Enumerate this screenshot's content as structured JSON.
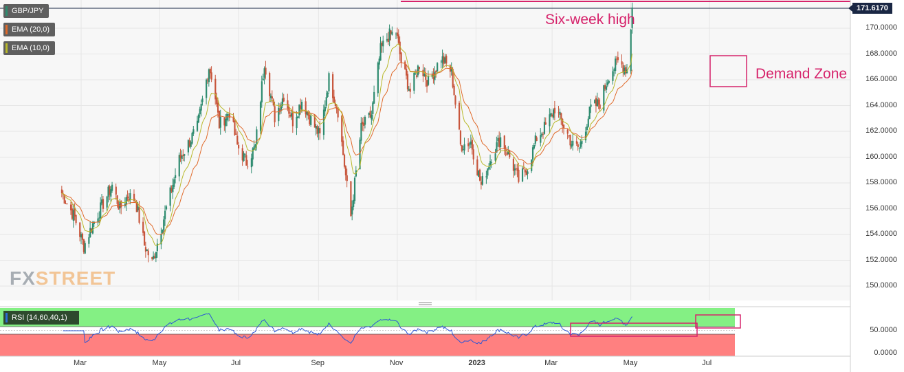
{
  "symbol_label": "GBP/JPY",
  "indicators": [
    {
      "label": "EMA (20,0)",
      "color": "#e06a2a"
    },
    {
      "label": "EMA (10,0)",
      "color": "#b8b82a"
    }
  ],
  "last_price": "171.6170",
  "annotations": {
    "six_week_high": "Six-week high",
    "demand_zone": "Demand Zone"
  },
  "logo": {
    "fx": "FX",
    "street": "STREET"
  },
  "rsi_label": "RSI (14,60,40,1)",
  "colors": {
    "up": "#2e8b6f",
    "down": "#c8563c",
    "annotation": "#d6236b",
    "rsi_line": "#2b55d6"
  },
  "chart_data": {
    "type": "candlestick",
    "title": "",
    "y_ticks": [
      "170.0000",
      "168.0000",
      "166.0000",
      "164.0000",
      "162.0000",
      "160.0000",
      "158.0000",
      "156.0000",
      "154.0000",
      "152.0000",
      "150.0000"
    ],
    "x_ticks": [
      "Mar",
      "May",
      "Jul",
      "Sep",
      "Nov",
      "2023",
      "Mar",
      "May",
      "Jul"
    ],
    "ylim": [
      148.6,
      172.2
    ],
    "grid": true,
    "anchors": [
      [
        "2022-02-14",
        157.2
      ],
      [
        "2022-02-24",
        155.3
      ],
      [
        "2022-03-03",
        153.1
      ],
      [
        "2022-03-10",
        154.8
      ],
      [
        "2022-03-25",
        157.8
      ],
      [
        "2022-03-31",
        156.0
      ],
      [
        "2022-04-06",
        157.0
      ],
      [
        "2022-04-12",
        156.7
      ],
      [
        "2022-04-19",
        153.2
      ],
      [
        "2022-04-25",
        151.8
      ],
      [
        "2022-05-02",
        154.5
      ],
      [
        "2022-05-16",
        159.8
      ],
      [
        "2022-05-30",
        162.3
      ],
      [
        "2022-06-08",
        167.0
      ],
      [
        "2022-06-11",
        166.0
      ],
      [
        "2022-06-16",
        162.5
      ],
      [
        "2022-06-24",
        163.5
      ],
      [
        "2022-06-30",
        160.9
      ],
      [
        "2022-07-07",
        159.6
      ],
      [
        "2022-07-14",
        160.8
      ],
      [
        "2022-07-21",
        167.4
      ],
      [
        "2022-07-29",
        163.1
      ],
      [
        "2022-08-05",
        164.8
      ],
      [
        "2022-08-12",
        162.8
      ],
      [
        "2022-08-19",
        164.4
      ],
      [
        "2022-08-25",
        163.1
      ],
      [
        "2022-09-02",
        161.6
      ],
      [
        "2022-09-09",
        166.1
      ],
      [
        "2022-09-16",
        163.6
      ],
      [
        "2022-09-23",
        157.7
      ],
      [
        "2022-09-26",
        155.4
      ],
      [
        "2022-10-04",
        162.2
      ],
      [
        "2022-10-12",
        163.3
      ],
      [
        "2022-10-19",
        168.3
      ],
      [
        "2022-10-25",
        169.4
      ],
      [
        "2022-10-31",
        169.7
      ],
      [
        "2022-11-04",
        167.4
      ],
      [
        "2022-11-11",
        165.1
      ],
      [
        "2022-11-18",
        167.2
      ],
      [
        "2022-11-25",
        165.8
      ],
      [
        "2022-12-05",
        167.7
      ],
      [
        "2022-12-13",
        166.6
      ],
      [
        "2022-12-20",
        160.9
      ],
      [
        "2022-12-28",
        161.2
      ],
      [
        "2023-01-05",
        157.8
      ],
      [
        "2023-01-13",
        160.1
      ],
      [
        "2023-01-20",
        161.5
      ],
      [
        "2023-01-27",
        160.0
      ],
      [
        "2023-02-03",
        158.2
      ],
      [
        "2023-02-10",
        159.2
      ],
      [
        "2023-02-17",
        161.5
      ],
      [
        "2023-02-24",
        162.4
      ],
      [
        "2023-03-03",
        163.8
      ],
      [
        "2023-03-10",
        162.4
      ],
      [
        "2023-03-17",
        160.9
      ],
      [
        "2023-03-22",
        160.7
      ],
      [
        "2023-03-31",
        163.8
      ],
      [
        "2023-04-07",
        164.2
      ],
      [
        "2023-04-14",
        166.4
      ],
      [
        "2023-04-21",
        167.4
      ],
      [
        "2023-04-28",
        166.8
      ],
      [
        "2023-05-01",
        170.1
      ],
      [
        "2023-05-02",
        171.6
      ]
    ],
    "series": [
      {
        "name": "GBP/JPY",
        "kind": "candles"
      },
      {
        "name": "EMA (20,0)",
        "kind": "line",
        "color": "#e06a2a"
      },
      {
        "name": "EMA (10,0)",
        "kind": "line",
        "color": "#b8b82a"
      }
    ],
    "rsi": {
      "name": "RSI (14,60,40,1)",
      "upper": 60,
      "lower": 40,
      "y_ticks": [
        "50.0000",
        "0.0000"
      ]
    }
  }
}
